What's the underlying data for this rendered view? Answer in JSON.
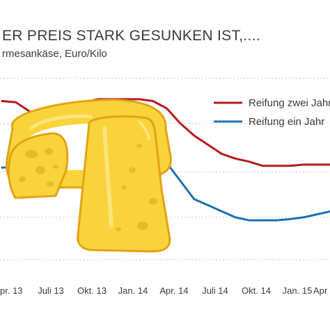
{
  "chart_data": {
    "type": "line",
    "title": "ER PREIS STARK GESUNKEN IST,....",
    "subtitle": "rmesankäse,  Euro/Kilo",
    "x_ticks": [
      "pr. 13",
      "Juli 13",
      "Okt. 13",
      "Jan. 14",
      "Apr. 14",
      "Juli 14",
      "Okt. 14",
      "Jan. 15",
      "Apr"
    ],
    "x": [
      "2013-04",
      "2013-05",
      "2013-06",
      "2013-07",
      "2013-08",
      "2013-09",
      "2013-10",
      "2013-11",
      "2013-12",
      "2014-01",
      "2014-02",
      "2014-03",
      "2014-04",
      "2014-05",
      "2014-06",
      "2014-07",
      "2014-08",
      "2014-09",
      "2014-10",
      "2014-11",
      "2014-12",
      "2015-01",
      "2015-02",
      "2015-03",
      "2015-04"
    ],
    "series": [
      {
        "name": "Reifung zwei Jahr",
        "color": "#b3191f",
        "values": [
          10.92,
          10.9,
          10.75,
          10.65,
          10.68,
          10.78,
          10.9,
          10.95,
          10.95,
          10.95,
          10.95,
          10.92,
          10.8,
          10.55,
          10.35,
          10.2,
          10.05,
          9.97,
          9.92,
          9.85,
          9.85,
          9.85,
          9.87,
          9.87,
          9.87
        ]
      },
      {
        "name": "Reifung ein Jahr",
        "color": "#1c6fb0",
        "values": [
          9.82,
          9.83,
          9.85,
          9.75,
          9.75,
          9.8,
          9.92,
          10.02,
          10.08,
          10.11,
          10.11,
          10.08,
          9.9,
          9.6,
          9.3,
          9.2,
          9.1,
          9.0,
          8.95,
          8.95,
          8.95,
          8.97,
          9.0,
          9.05,
          9.1
        ]
      }
    ],
    "ylim": [
      8.0,
      11.5
    ],
    "y_gridlines": [
      8.3,
      9.0,
      9.75,
      10.55,
      11.3
    ],
    "grid": true,
    "legend_placement": "top-right"
  },
  "illustration": {
    "icon": "cheese-illustration-icon",
    "colors": {
      "fill": "#f9d33a",
      "light": "#fbe47a",
      "outline": "#e2a316",
      "hole": "#e9b92c"
    }
  }
}
